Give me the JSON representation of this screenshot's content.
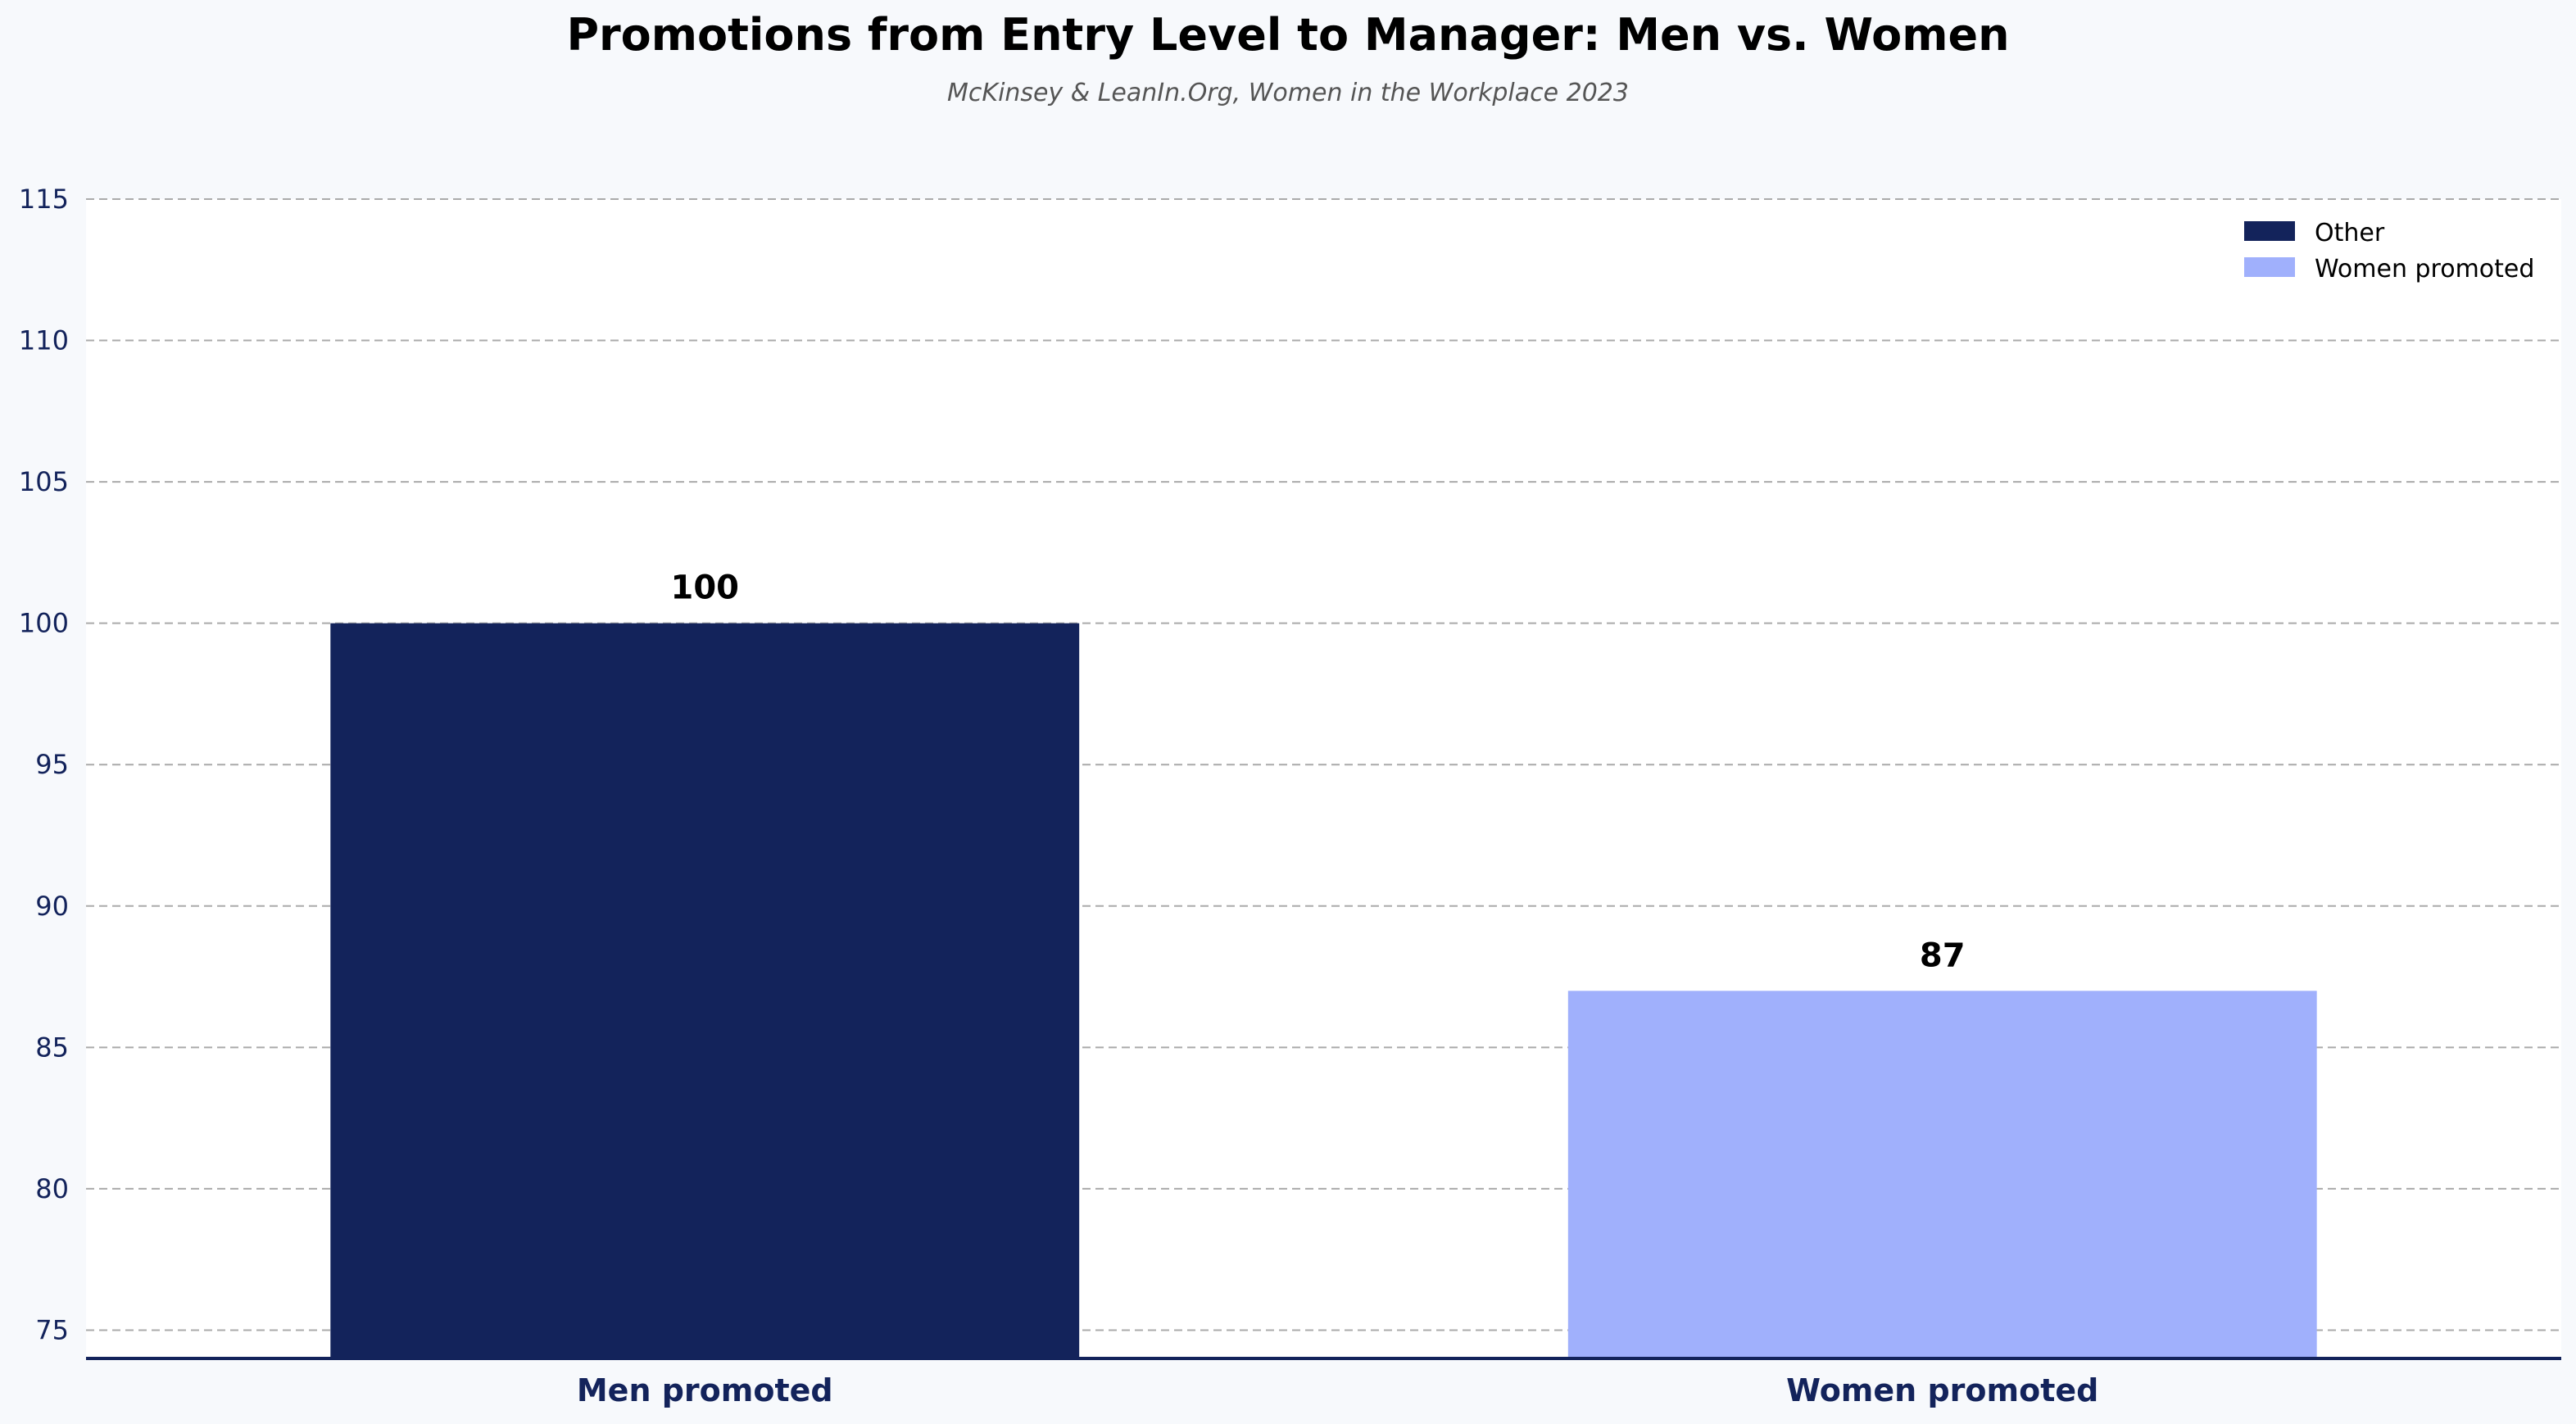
{
  "chart_data": {
    "type": "bar",
    "title": "Promotions from Entry Level to Manager: Men vs. Women",
    "subtitle": "McKinsey & LeanIn.Org, Women in the Workplace 2023",
    "xlabel": "",
    "ylabel": "",
    "categories": [
      "Men promoted",
      "Women promoted"
    ],
    "values": [
      100,
      87
    ],
    "bar_colors": [
      "#13235b",
      "#a0b0fc"
    ],
    "ylim": [
      74,
      115
    ],
    "yticks": [
      75,
      80,
      85,
      90,
      95,
      100,
      105,
      110,
      115
    ],
    "grid": true,
    "legend": {
      "placement": "top-right",
      "entries": [
        {
          "label": "Other",
          "color": "#13235b"
        },
        {
          "label": "Women promoted",
          "color": "#a0b0fc"
        }
      ]
    }
  }
}
